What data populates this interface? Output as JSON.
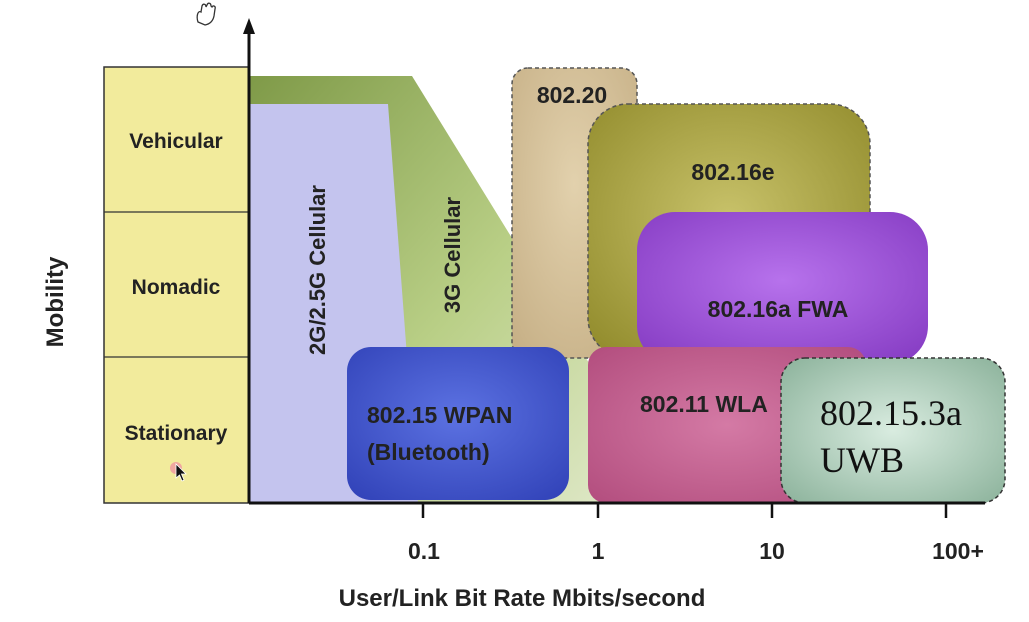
{
  "diagram": {
    "ylabel": "Mobility",
    "xlabel": "User/Link Bit Rate Mbits/second",
    "mobility_levels": [
      "Vehicular",
      "Nomadic",
      "Stationary"
    ],
    "x_ticks": [
      "0.1",
      "1",
      "10",
      "100+"
    ],
    "regions": {
      "cellular_2g": "2G/2.5G Cellular",
      "cellular_3g": "3G Cellular",
      "ieee_802_20": "802.20",
      "ieee_802_16e": "802.16e",
      "ieee_802_16a": "802.16a FWA",
      "ieee_802_11": "802.11 WLA",
      "wpan_line1": "802.15 WPAN",
      "wpan_line2": "(Bluetooth)",
      "uwb_line1": "802.15.3a",
      "uwb_line2": "UWB"
    },
    "colors": {
      "mobility_band": "#f2eb9c",
      "cellular_2g": "#c4c4ee",
      "cellular_3g": "#a8b870",
      "ieee_802_20": "#d2bd95",
      "ieee_802_16e": "#a9a43c",
      "ieee_802_16a": "#9a4fd2",
      "ieee_802_11": "#c25e8c",
      "wpan": "#3d55cc",
      "uwb": "#9bc1aa"
    }
  }
}
